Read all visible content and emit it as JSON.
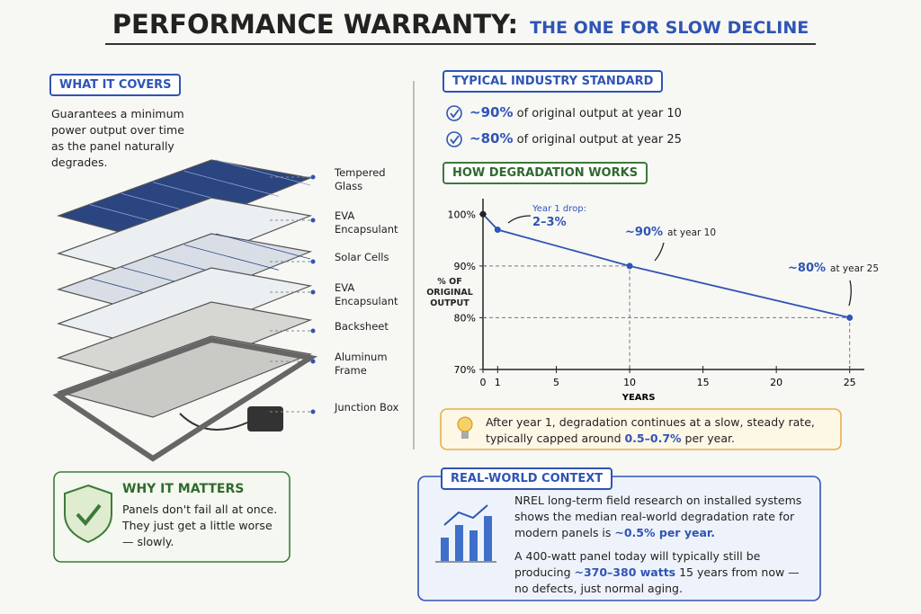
{
  "header": {
    "title": "PERFORMANCE WARRANTY:",
    "subtitle": "THE ONE FOR SLOW DECLINE"
  },
  "what_it_covers": {
    "heading": "WHAT IT COVERS",
    "text": "Guarantees a minimum power output over time as the panel naturally degrades.",
    "layers": [
      "Tempered Glass",
      "EVA Encapsulant",
      "Solar Cells",
      "EVA Encapsulant",
      "Backsheet",
      "Aluminum Frame",
      "Junction Box"
    ]
  },
  "why_it_matters": {
    "heading": "WHY IT MATTERS",
    "text": "Panels don't fail all at once. They just get a little worse — slowly."
  },
  "industry_standard": {
    "heading": "TYPICAL INDUSTRY STANDARD",
    "items": [
      {
        "highlight": "~90%",
        "text": "of original output at year 10"
      },
      {
        "highlight": "~80%",
        "text": "of original output at year 25"
      }
    ]
  },
  "degradation": {
    "heading": "HOW DEGRADATION WORKS",
    "callout": [
      "After year 1, degradation continues at a slow, steady rate, typically capped around ",
      "0.5–0.7%",
      " per year."
    ]
  },
  "real_world": {
    "heading": "REAL-WORLD CONTEXT",
    "paragraphs": [
      [
        "NREL long-term field research on installed systems shows the median real-world degradation rate for modern panels is ",
        "~0.5% per year."
      ],
      [
        "A 400-watt panel today will typically still be producing ",
        "~370–380 watts",
        " 15 years from now — no defects, just normal aging."
      ]
    ]
  },
  "chart_data": {
    "type": "line",
    "x": [
      0,
      1,
      10,
      25
    ],
    "values": [
      100,
      97,
      90,
      80
    ],
    "color": "#2f54b5",
    "xlim": [
      0,
      26
    ],
    "ylim": [
      70,
      103
    ],
    "xticks": [
      0,
      1,
      5,
      10,
      15,
      20,
      25
    ],
    "yticks": [
      {
        "value": 70,
        "label": "70%"
      },
      {
        "value": 80,
        "label": "80%"
      },
      {
        "value": 90,
        "label": "90%"
      },
      {
        "value": 100,
        "label": "100%"
      }
    ],
    "xlabel": "YEARS",
    "ylabel": "% OF ORIGINAL OUTPUT",
    "annotations": [
      {
        "label": "Year 1 drop:",
        "highlight": "2–3%"
      },
      {
        "highlight": "~90%",
        "label": "at year 10"
      },
      {
        "highlight": "~80%",
        "label": "at year 25"
      }
    ]
  }
}
